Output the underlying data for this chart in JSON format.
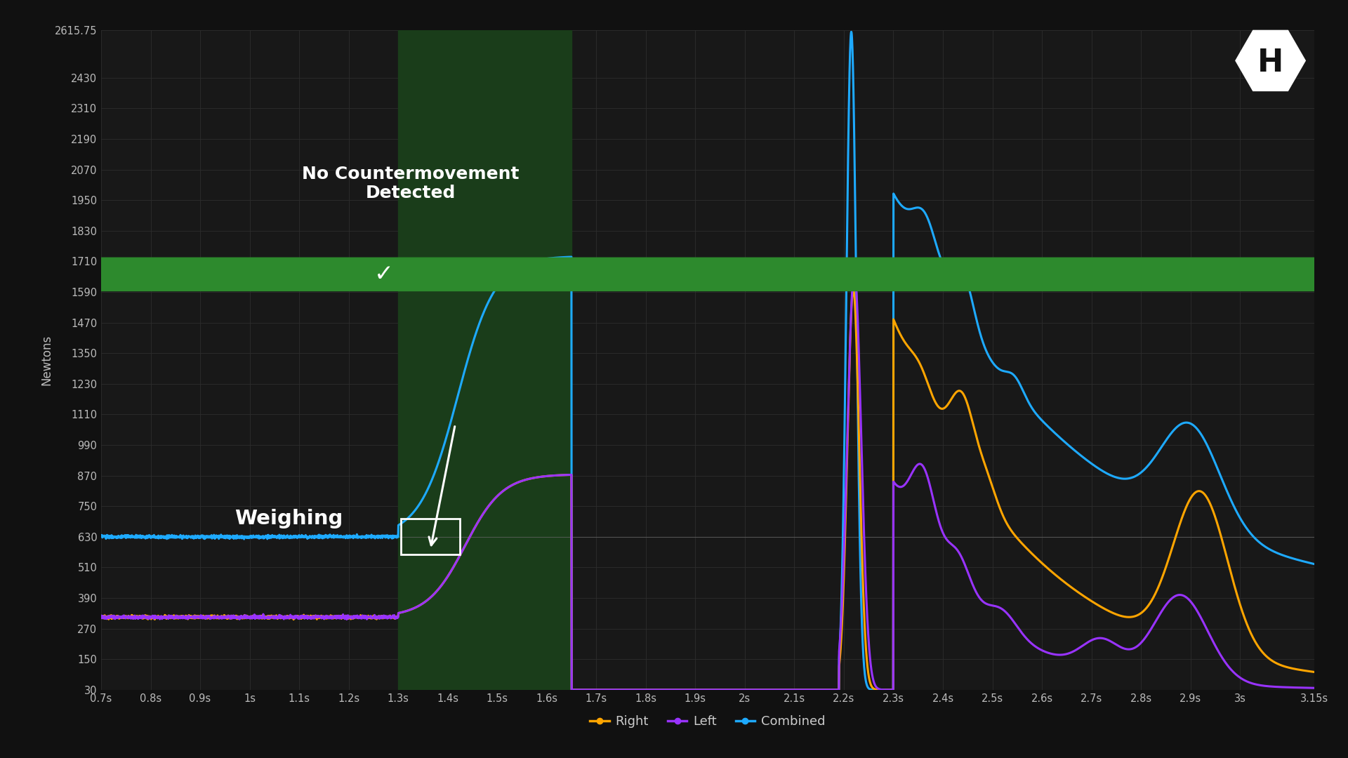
{
  "background_color": "#111111",
  "plot_bg_color": "#181818",
  "grid_color": "#2d2d2d",
  "x_min": 0.7,
  "x_max": 3.15,
  "y_min": 30,
  "y_max": 2615.75,
  "y_ticks": [
    30,
    150,
    270,
    390,
    510,
    630,
    750,
    870,
    990,
    1110,
    1230,
    1350,
    1470,
    1590,
    1710,
    1830,
    1950,
    2070,
    2190,
    2310,
    2430,
    2615.75
  ],
  "x_ticks": [
    0.7,
    0.8,
    0.9,
    1.0,
    1.1,
    1.2,
    1.3,
    1.4,
    1.5,
    1.6,
    1.7,
    1.8,
    1.9,
    2.0,
    2.1,
    2.2,
    2.3,
    2.4,
    2.5,
    2.6,
    2.7,
    2.8,
    2.9,
    3.0,
    3.15
  ],
  "green_shade_x1": 1.3,
  "green_shade_x2": 1.65,
  "green_shade_color": "#1a3d1a",
  "green_shade_alpha": 1.0,
  "reference_line_y": 630,
  "reference_line_color": "#666666",
  "right_color": "#FFA500",
  "left_color": "#9933FF",
  "combined_color": "#1EAAFF",
  "line_width": 2.2,
  "ylabel": "Newtons",
  "weighing_text": "Weighing",
  "no_cm_text": "No Countermovement\nDetected",
  "legend_entries": [
    "Right",
    "Left",
    "Combined"
  ],
  "check_circle_color": "#2d8a2d",
  "logo_bg": "#ffffff",
  "logo_text_color": "#111111"
}
